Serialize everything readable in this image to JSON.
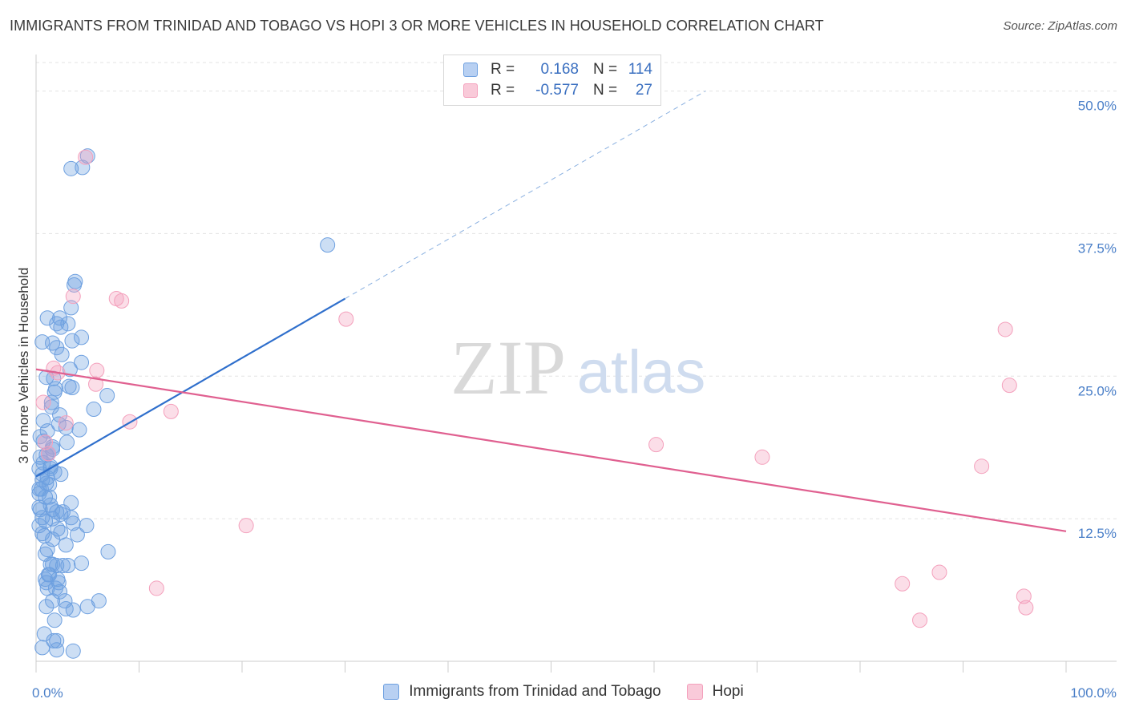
{
  "title": "IMMIGRANTS FROM TRINIDAD AND TOBAGO VS HOPI 3 OR MORE VEHICLES IN HOUSEHOLD CORRELATION CHART",
  "source": "Source: ZipAtlas.com",
  "watermark": {
    "zip": "ZIP",
    "atlas": "atlas"
  },
  "legend": {
    "rows": [
      {
        "r_label": "R =",
        "r_value": "0.168",
        "n_label": "N =",
        "n_value": "114"
      },
      {
        "r_label": "R =",
        "r_value": "-0.577",
        "n_label": "N =",
        "n_value": "27"
      }
    ]
  },
  "chart_data": {
    "type": "scatter",
    "title": "IMMIGRANTS FROM TRINIDAD AND TOBAGO VS HOPI 3 OR MORE VEHICLES IN HOUSEHOLD CORRELATION CHART",
    "xlabel": "",
    "ylabel": "3 or more Vehicles in Household",
    "xlim": [
      0,
      100
    ],
    "ylim": [
      0,
      52.5
    ],
    "x_tick_labels": [
      {
        "value": 0,
        "label": "0.0%"
      },
      {
        "value": 100,
        "label": "100.0%"
      }
    ],
    "y_tick_labels": [
      {
        "value": 12.5,
        "label": "12.5%"
      },
      {
        "value": 25.0,
        "label": "25.0%"
      },
      {
        "value": 37.5,
        "label": "37.5%"
      },
      {
        "value": 50.0,
        "label": "50.0%"
      }
    ],
    "legend_position": "bottom",
    "series": [
      {
        "name": "Immigrants from Trinidad and Tobago",
        "color": "#6ea0e0",
        "line_color": "#2f6fcc",
        "R": 0.168,
        "N": 114,
        "trendline": {
          "x": [
            0,
            30
          ],
          "y": [
            16.2,
            31.8
          ],
          "extended_x": [
            30,
            65
          ],
          "extended_y": [
            31.8,
            50.0
          ]
        },
        "points": [
          [
            4.5,
            43.3
          ],
          [
            3.4,
            43.2
          ],
          [
            5.0,
            44.3
          ],
          [
            28.3,
            36.5
          ],
          [
            3.8,
            33.3
          ],
          [
            3.7,
            33.0
          ],
          [
            3.4,
            31.0
          ],
          [
            2.3,
            30.1
          ],
          [
            2.0,
            29.6
          ],
          [
            4.4,
            28.4
          ],
          [
            2.0,
            27.5
          ],
          [
            4.4,
            26.2
          ],
          [
            1.0,
            24.9
          ],
          [
            1.7,
            24.8
          ],
          [
            3.2,
            24.1
          ],
          [
            3.5,
            24.0
          ],
          [
            1.8,
            23.6
          ],
          [
            6.9,
            23.3
          ],
          [
            1.5,
            22.3
          ],
          [
            5.6,
            22.1
          ],
          [
            2.3,
            21.6
          ],
          [
            2.9,
            20.5
          ],
          [
            4.2,
            20.3
          ],
          [
            1.1,
            20.2
          ],
          [
            0.7,
            19.3
          ],
          [
            3.0,
            19.2
          ],
          [
            1.6,
            18.6
          ],
          [
            1.0,
            18.1
          ],
          [
            0.4,
            17.9
          ],
          [
            1.4,
            17.1
          ],
          [
            0.3,
            16.9
          ],
          [
            1.8,
            16.6
          ],
          [
            1.1,
            16.1
          ],
          [
            0.6,
            15.9
          ],
          [
            1.3,
            15.5
          ],
          [
            0.3,
            15.1
          ],
          [
            0.3,
            14.7
          ],
          [
            0.9,
            14.4
          ],
          [
            3.4,
            13.9
          ],
          [
            1.4,
            13.7
          ],
          [
            1.6,
            13.3
          ],
          [
            0.4,
            13.3
          ],
          [
            2.0,
            13.1
          ],
          [
            2.6,
            13.1
          ],
          [
            2.4,
            12.9
          ],
          [
            0.6,
            12.6
          ],
          [
            0.9,
            12.3
          ],
          [
            3.6,
            12.1
          ],
          [
            0.3,
            11.9
          ],
          [
            2.4,
            11.3
          ],
          [
            4.0,
            11.1
          ],
          [
            1.6,
            10.7
          ],
          [
            2.9,
            10.2
          ],
          [
            7.0,
            9.6
          ],
          [
            4.4,
            8.6
          ],
          [
            2.6,
            8.4
          ],
          [
            1.4,
            8.5
          ],
          [
            2.0,
            8.4
          ],
          [
            3.1,
            8.4
          ],
          [
            1.2,
            7.6
          ],
          [
            0.9,
            7.2
          ],
          [
            2.1,
            7.2
          ],
          [
            1.1,
            6.4
          ],
          [
            2.3,
            6.1
          ],
          [
            1.6,
            5.3
          ],
          [
            1.0,
            4.8
          ],
          [
            2.9,
            4.6
          ],
          [
            3.6,
            4.5
          ],
          [
            1.8,
            3.6
          ],
          [
            0.6,
            1.2
          ],
          [
            2.0,
            1.8
          ],
          [
            1.7,
            1.8
          ],
          [
            3.6,
            0.9
          ],
          [
            2.0,
            1.0
          ],
          [
            0.8,
            2.4
          ],
          [
            5.0,
            4.8
          ],
          [
            2.8,
            5.3
          ],
          [
            1.0,
            6.9
          ],
          [
            1.9,
            6.4
          ],
          [
            2.2,
            6.9
          ],
          [
            1.3,
            7.6
          ],
          [
            1.6,
            8.5
          ],
          [
            0.9,
            9.4
          ],
          [
            1.1,
            9.8
          ],
          [
            0.6,
            11.2
          ],
          [
            0.8,
            11.0
          ],
          [
            2.1,
            11.6
          ],
          [
            1.6,
            12.5
          ],
          [
            3.4,
            12.6
          ],
          [
            0.3,
            13.5
          ],
          [
            1.3,
            14.4
          ],
          [
            0.5,
            15.1
          ],
          [
            1.0,
            15.6
          ],
          [
            2.4,
            16.4
          ],
          [
            0.6,
            16.4
          ],
          [
            1.4,
            16.9
          ],
          [
            0.7,
            17.4
          ],
          [
            1.2,
            18.2
          ],
          [
            1.6,
            18.8
          ],
          [
            0.4,
            19.7
          ],
          [
            2.2,
            20.8
          ],
          [
            0.7,
            21.1
          ],
          [
            1.5,
            22.7
          ],
          [
            1.9,
            23.9
          ],
          [
            3.3,
            25.6
          ],
          [
            2.5,
            26.9
          ],
          [
            1.6,
            27.9
          ],
          [
            0.6,
            28.0
          ],
          [
            3.5,
            28.1
          ],
          [
            2.4,
            29.3
          ],
          [
            3.1,
            29.6
          ],
          [
            1.1,
            30.1
          ],
          [
            4.9,
            11.9
          ],
          [
            6.1,
            5.3
          ]
        ]
      },
      {
        "name": "Hopi",
        "color": "#f4a0bc",
        "line_color": "#e06090",
        "R": -0.577,
        "N": 27,
        "trendline": {
          "x": [
            0,
            100
          ],
          "y": [
            25.6,
            11.4
          ]
        },
        "points": [
          [
            4.8,
            44.2
          ],
          [
            3.6,
            32.0
          ],
          [
            7.8,
            31.8
          ],
          [
            8.3,
            31.6
          ],
          [
            30.1,
            30.0
          ],
          [
            94.1,
            29.1
          ],
          [
            1.7,
            25.7
          ],
          [
            2.1,
            25.3
          ],
          [
            5.9,
            25.5
          ],
          [
            5.8,
            24.3
          ],
          [
            94.5,
            24.2
          ],
          [
            0.7,
            22.7
          ],
          [
            13.1,
            21.9
          ],
          [
            9.1,
            21.0
          ],
          [
            2.9,
            20.9
          ],
          [
            60.2,
            19.0
          ],
          [
            70.5,
            17.9
          ],
          [
            91.8,
            17.1
          ],
          [
            20.4,
            11.9
          ],
          [
            11.7,
            6.4
          ],
          [
            84.1,
            6.8
          ],
          [
            87.7,
            7.8
          ],
          [
            95.9,
            5.7
          ],
          [
            96.1,
            4.7
          ],
          [
            85.8,
            3.6
          ],
          [
            0.9,
            19.2
          ],
          [
            1.2,
            18.2
          ]
        ]
      }
    ]
  }
}
